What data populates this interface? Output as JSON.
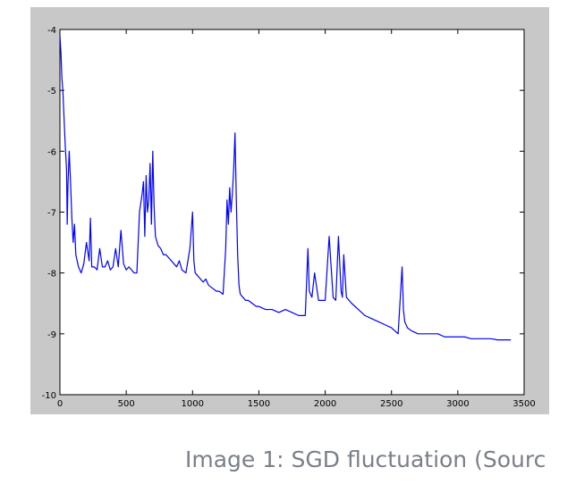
{
  "caption": "Image 1: SGD fluctuation (Sourc",
  "colors": {
    "figure_background": "#c8c8c8",
    "axes_background": "#ffffff",
    "line": "#0000ff",
    "caption_text": "#7a8088"
  },
  "chart_data": {
    "type": "line",
    "title": "",
    "xlabel": "",
    "ylabel": "",
    "xlim": [
      0,
      3500
    ],
    "ylim": [
      -10,
      -4
    ],
    "xticks": [
      0,
      500,
      1000,
      1500,
      2000,
      2500,
      3000,
      3500
    ],
    "yticks": [
      -10,
      -9,
      -8,
      -7,
      -6,
      -5,
      -4
    ],
    "grid": false,
    "legend": "none",
    "series": [
      {
        "x": [
          0,
          8,
          15,
          22,
          30,
          40,
          50,
          55,
          60,
          70,
          80,
          90,
          100,
          110,
          120,
          140,
          160,
          180,
          200,
          220,
          230,
          240,
          260,
          280,
          300,
          320,
          340,
          360,
          380,
          400,
          420,
          440,
          460,
          480,
          500,
          520,
          540,
          560,
          580,
          600,
          620,
          630,
          640,
          650,
          660,
          670,
          680,
          690,
          700,
          710,
          720,
          740,
          760,
          780,
          800,
          820,
          840,
          860,
          880,
          900,
          920,
          950,
          980,
          1000,
          1010,
          1020,
          1040,
          1060,
          1080,
          1100,
          1120,
          1150,
          1180,
          1200,
          1230,
          1250,
          1260,
          1270,
          1280,
          1290,
          1300,
          1310,
          1320,
          1330,
          1340,
          1350,
          1360,
          1380,
          1400,
          1420,
          1450,
          1480,
          1500,
          1550,
          1600,
          1650,
          1700,
          1750,
          1800,
          1850,
          1870,
          1880,
          1900,
          1920,
          1950,
          2000,
          2030,
          2060,
          2080,
          2100,
          2120,
          2130,
          2140,
          2160,
          2180,
          2200,
          2250,
          2300,
          2350,
          2400,
          2450,
          2500,
          2550,
          2580,
          2590,
          2600,
          2620,
          2650,
          2700,
          2750,
          2800,
          2850,
          2900,
          2950,
          3000,
          3050,
          3100,
          3150,
          3200,
          3250,
          3300,
          3350,
          3400
        ],
        "values": [
          -4.1,
          -4.4,
          -4.8,
          -5.0,
          -5.4,
          -5.9,
          -6.3,
          -7.2,
          -6.6,
          -6.0,
          -6.5,
          -7.1,
          -7.5,
          -7.2,
          -7.7,
          -7.9,
          -8.0,
          -7.85,
          -7.5,
          -7.8,
          -7.1,
          -7.9,
          -7.9,
          -7.95,
          -7.6,
          -7.9,
          -7.9,
          -7.8,
          -7.95,
          -7.9,
          -7.6,
          -7.9,
          -7.3,
          -7.85,
          -7.95,
          -7.9,
          -7.95,
          -8.0,
          -8.0,
          -7.0,
          -6.7,
          -6.5,
          -7.4,
          -6.4,
          -7.0,
          -6.8,
          -6.2,
          -7.2,
          -6.0,
          -6.9,
          -7.4,
          -7.55,
          -7.6,
          -7.7,
          -7.7,
          -7.75,
          -7.8,
          -7.85,
          -7.9,
          -7.8,
          -7.95,
          -8.0,
          -7.6,
          -7.0,
          -7.8,
          -8.0,
          -8.05,
          -8.1,
          -8.15,
          -8.1,
          -8.2,
          -8.25,
          -8.3,
          -8.3,
          -8.35,
          -7.6,
          -6.8,
          -7.2,
          -6.6,
          -7.0,
          -6.7,
          -6.3,
          -5.7,
          -6.8,
          -7.7,
          -8.2,
          -8.35,
          -8.4,
          -8.45,
          -8.45,
          -8.5,
          -8.55,
          -8.55,
          -8.6,
          -8.6,
          -8.65,
          -8.6,
          -8.65,
          -8.7,
          -8.7,
          -7.6,
          -8.3,
          -8.4,
          -8.0,
          -8.45,
          -8.45,
          -7.4,
          -8.4,
          -8.45,
          -7.4,
          -8.3,
          -8.4,
          -7.7,
          -8.4,
          -8.45,
          -8.5,
          -8.6,
          -8.7,
          -8.75,
          -8.8,
          -8.85,
          -8.9,
          -9.0,
          -7.9,
          -8.6,
          -8.8,
          -8.9,
          -8.95,
          -9.0,
          -9.0,
          -9.0,
          -9.0,
          -9.05,
          -9.05,
          -9.05,
          -9.05,
          -9.08,
          -9.08,
          -9.08,
          -9.08,
          -9.1,
          -9.1,
          -9.1
        ]
      }
    ]
  }
}
